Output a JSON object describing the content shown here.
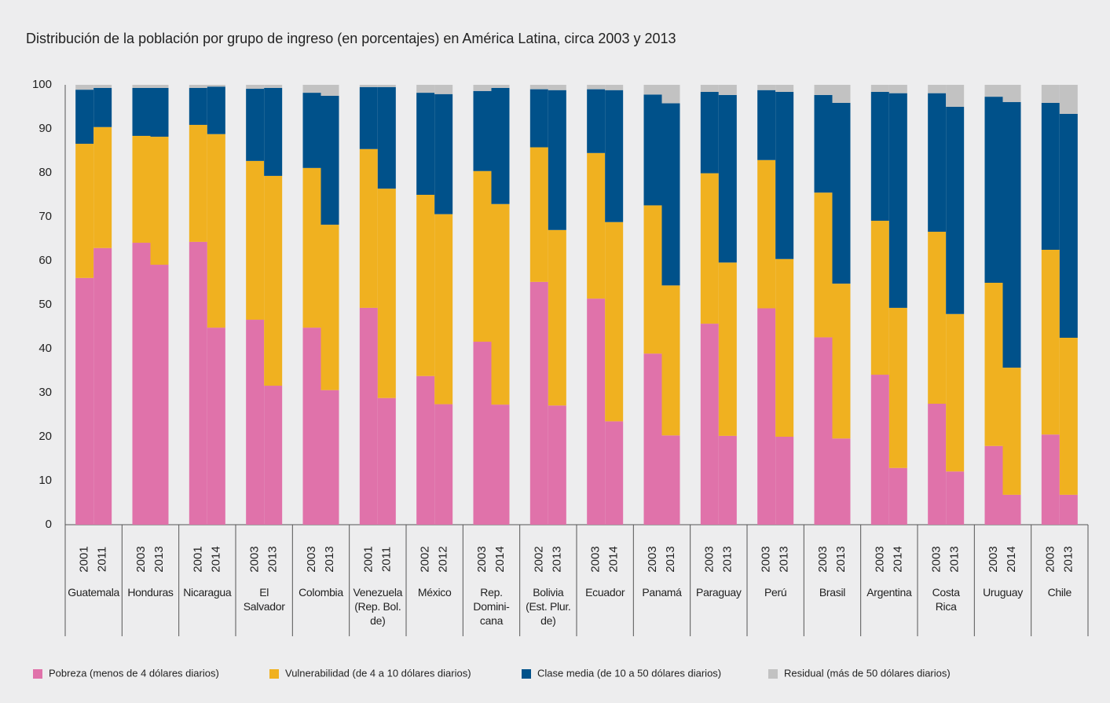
{
  "chart_data": {
    "type": "stacked_bar",
    "title": "Distribución de la población por grupo de ingreso (en porcentajes) en América Latina, circa 2003 y 2013",
    "categories": [
      "2001",
      "2011",
      "2003",
      "2013",
      "2001",
      "2014",
      "2003",
      "2013",
      "2003",
      "2013",
      "2001",
      "2011",
      "2002",
      "2012",
      "2003",
      "2014",
      "2002",
      "2013",
      "2003",
      "2014",
      "2003",
      "2013",
      "2003",
      "2013",
      "2003",
      "2013",
      "2003",
      "2013",
      "2003",
      "2014",
      "2003",
      "2013",
      "2003",
      "2014",
      "2003",
      "2013"
    ],
    "groups": [
      "Guatemala",
      "Honduras",
      "Nicaragua",
      "El\nSalvador",
      "Colombia",
      "Venezuela\n(Rep. Bol.\nde)",
      "México",
      "Rep.\nDomini-\ncana",
      "Bolivia\n(Est. Plur.\nde)",
      "Ecuador",
      "Panamá",
      "Paraguay",
      "Perú",
      "Brasil",
      "Argentina",
      "Costa\nRica",
      "Uruguay",
      "Chile"
    ],
    "series": [
      {
        "name": "Pobreza (menos de 4 dólares diarios)",
        "color": "#e072aa",
        "values": [
          56.1,
          62.9,
          64.1,
          59.1,
          64.3,
          44.8,
          46.6,
          31.6,
          44.8,
          30.6,
          49.3,
          28.8,
          33.8,
          27.4,
          41.6,
          27.3,
          55.2,
          27.1,
          51.4,
          23.5,
          38.9,
          20.3,
          45.7,
          20.2,
          49.2,
          20.0,
          42.6,
          19.6,
          34.1,
          12.9,
          27.5,
          12.1,
          17.9,
          6.8,
          20.5,
          6.8
        ]
      },
      {
        "name": "Vulnerabilidad (de 4 a 10 dólares diarios)",
        "color": "#f0b120",
        "values": [
          30.5,
          27.5,
          24.3,
          29.1,
          26.6,
          44.0,
          36.1,
          47.7,
          36.3,
          37.6,
          36.1,
          47.6,
          41.2,
          43.2,
          38.8,
          45.6,
          30.6,
          39.9,
          33.1,
          45.3,
          33.7,
          34.1,
          34.2,
          39.4,
          33.7,
          40.4,
          32.9,
          35.2,
          35.0,
          36.4,
          39.1,
          35.8,
          37.1,
          28.9,
          42.0,
          35.7
        ]
      },
      {
        "name": "Clase media (de 10 a 50 dólares diarios)",
        "color": "#00518a",
        "values": [
          12.3,
          8.9,
          10.9,
          11.1,
          8.4,
          10.8,
          16.4,
          20.0,
          17.1,
          29.3,
          14.1,
          23.1,
          23.2,
          27.3,
          18.2,
          26.4,
          13.2,
          31.8,
          14.5,
          30.0,
          25.2,
          41.4,
          18.5,
          38.1,
          15.9,
          38.0,
          22.2,
          41.1,
          29.3,
          48.8,
          31.5,
          47.1,
          42.3,
          60.4,
          33.4,
          50.9
        ]
      },
      {
        "name": "Residual (más de 50 dólares diarios)",
        "color": "#c2c2c2",
        "values": [
          1.1,
          0.7,
          0.7,
          0.7,
          0.7,
          0.4,
          0.9,
          0.7,
          1.8,
          2.5,
          0.5,
          0.5,
          1.8,
          2.1,
          1.4,
          0.7,
          1.0,
          1.2,
          1.0,
          1.2,
          2.2,
          4.2,
          1.6,
          2.3,
          1.2,
          1.6,
          2.3,
          4.1,
          1.6,
          1.9,
          1.9,
          5.0,
          2.7,
          3.9,
          4.1,
          6.6
        ]
      }
    ],
    "ylim": [
      0,
      100
    ],
    "yticks": [
      0,
      10,
      20,
      30,
      40,
      50,
      60,
      70,
      80,
      90,
      100
    ],
    "grid": false,
    "legend": "bottom"
  }
}
